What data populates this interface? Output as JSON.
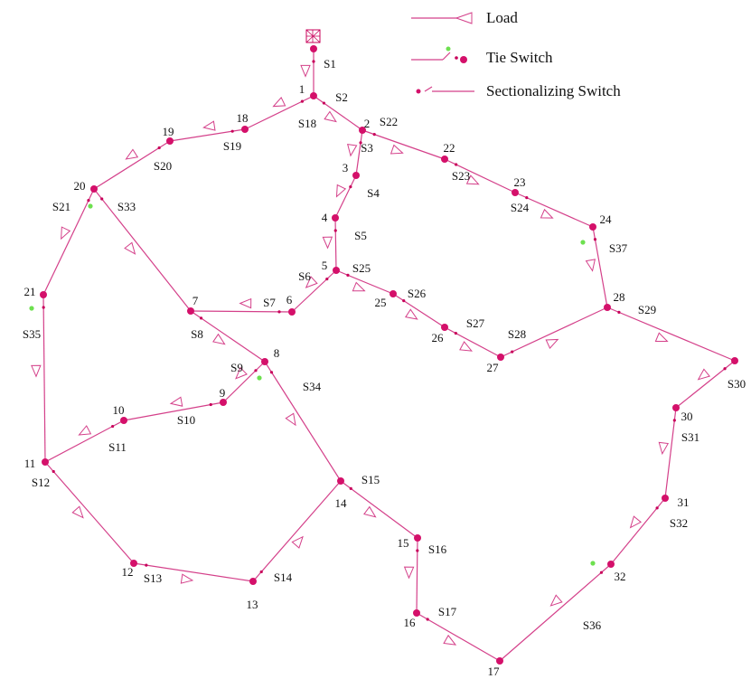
{
  "legend": [
    "Load",
    "Tie Switch",
    "Sectionalizing Switch"
  ],
  "nodes": [
    "1",
    "2",
    "3",
    "4",
    "5",
    "6",
    "7",
    "8",
    "9",
    "10",
    "11",
    "12",
    "13",
    "14",
    "15",
    "16",
    "17",
    "18",
    "19",
    "20",
    "21",
    "22",
    "23",
    "24",
    "25",
    "26",
    "27",
    "28",
    "30",
    "31",
    "32"
  ],
  "switches": [
    "S1",
    "S2",
    "S3",
    "S4",
    "S5",
    "S6",
    "S7",
    "S8",
    "S9",
    "S10",
    "S11",
    "S12",
    "S13",
    "S14",
    "S15",
    "S16",
    "S17",
    "S18",
    "S19",
    "S20",
    "S21",
    "S22",
    "S23",
    "S24",
    "S25",
    "S26",
    "S27",
    "S28",
    "S29",
    "S30",
    "S31",
    "S32",
    "S33",
    "S34",
    "S35",
    "S36",
    "S37"
  ]
}
